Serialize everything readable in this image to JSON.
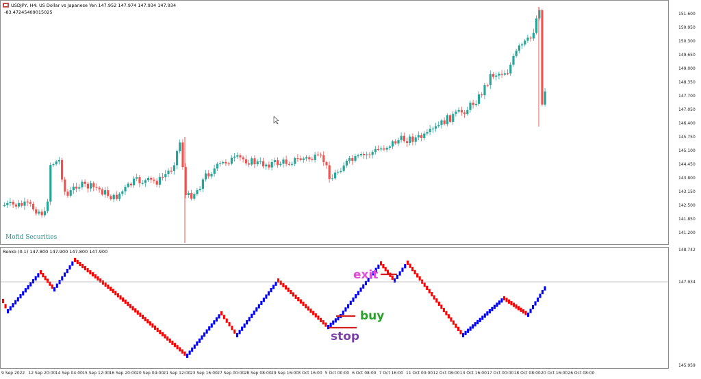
{
  "main_header": {
    "title": "USDJPY, H4:  US Dollar vs Japanese Yen  147.952 147.974 147.934 147.934",
    "subline": "-83.47245409015025"
  },
  "logo_text": "Mofid Securities",
  "renko_header": "Renko (0.1) 147.800 147.900 147.800 147.900",
  "price_axis": [
    "151.600",
    "150.950",
    "150.300",
    "149.650",
    "149.000",
    "148.350",
    "147.700",
    "147.050",
    "146.400",
    "145.750",
    "145.100",
    "144.450",
    "143.800",
    "143.150",
    "142.500",
    "141.850",
    "141.200"
  ],
  "renko_axis": [
    "148.742",
    "147.934",
    "145.959"
  ],
  "time_axis": [
    "9 Sep 2022",
    "12 Sep 20:00",
    "14 Sep 04:00",
    "15 Sep 12:00",
    "16 Sep 20:00",
    "20 Sep 04:00",
    "21 Sep 12:00",
    "23 Sep 16:00",
    "27 Sep 00:00",
    "28 Sep 08:00",
    "29 Sep 16:00",
    "3 Oct 16:00",
    "5 Oct 00:00",
    "6 Oct 08:00",
    "7 Oct 16:00",
    "11 Oct 00:00",
    "12 Oct 08:00",
    "13 Oct 16:00",
    "17 Oct 00:00",
    "18 Oct 08:00",
    "20 Oct 16:00",
    "26 Oct 08:00"
  ],
  "annotations": {
    "exit": "exit",
    "buy": "buy",
    "stop": "stop"
  },
  "colors": {
    "bull": "#26a69a",
    "bear": "#ef5350",
    "renko_up": "#0000ff",
    "renko_down": "#ff0000",
    "exit": "#e24bd8",
    "buy": "#2ca02c",
    "stop": "#7b3fa8"
  }
}
